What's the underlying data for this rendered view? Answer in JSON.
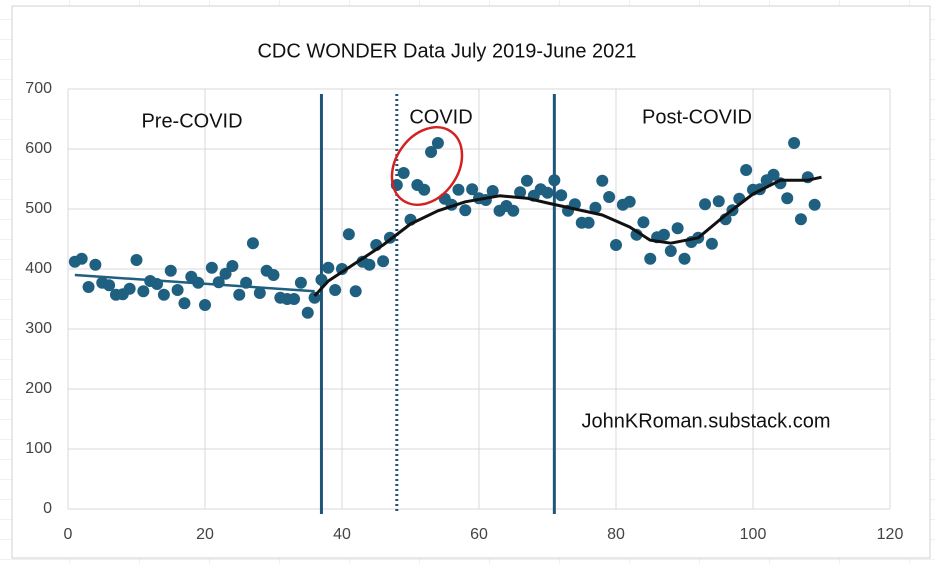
{
  "chart_data": {
    "type": "scatter",
    "title": "CDC WONDER Data July 2019-June 2021",
    "annotations": [
      "Pre-COVID",
      "COVID",
      "Post-COVID",
      "JohnKRoman.substack.com"
    ],
    "color": "#1f5f80",
    "x": [
      1,
      2,
      3,
      4,
      5,
      6,
      7,
      8,
      9,
      10,
      11,
      12,
      13,
      14,
      15,
      16,
      17,
      18,
      19,
      20,
      21,
      22,
      23,
      24,
      25,
      26,
      27,
      28,
      29,
      30,
      31,
      32,
      33,
      34,
      35,
      36,
      37,
      38,
      39,
      40,
      41,
      42,
      43,
      44,
      45,
      46,
      47,
      48,
      49,
      50,
      51,
      52,
      53,
      54,
      55,
      56,
      57,
      58,
      59,
      60,
      61,
      62,
      63,
      64,
      65,
      66,
      67,
      68,
      69,
      70,
      71,
      72,
      73,
      74,
      75,
      76,
      77,
      78,
      79,
      80,
      81,
      82,
      83,
      84,
      85,
      86,
      87,
      88,
      89,
      90,
      91,
      92,
      93,
      94,
      95,
      96,
      97,
      98,
      99,
      100,
      101,
      102,
      103,
      104,
      105,
      106,
      107,
      108,
      109
    ],
    "values": [
      412,
      417,
      370,
      407,
      377,
      373,
      357,
      358,
      367,
      415,
      363,
      380,
      375,
      357,
      397,
      365,
      343,
      387,
      377,
      340,
      402,
      378,
      392,
      405,
      357,
      377,
      443,
      360,
      397,
      390,
      352,
      350,
      350,
      377,
      327,
      352,
      382,
      402,
      365,
      400,
      458,
      363,
      412,
      407,
      440,
      413,
      452,
      540,
      560,
      482,
      540,
      532,
      595,
      610,
      517,
      507,
      532,
      498,
      533,
      518,
      515,
      530,
      497,
      505,
      497,
      528,
      547,
      522,
      533,
      527,
      548,
      523,
      497,
      508,
      477,
      477,
      502,
      547,
      520,
      440,
      507,
      512,
      457,
      478,
      417,
      453,
      457,
      430,
      468,
      417,
      445,
      452,
      508,
      442,
      513,
      483,
      498,
      517,
      565,
      532,
      533,
      548,
      557,
      543,
      518,
      610,
      483,
      553,
      507
    ],
    "trendlines": [
      {
        "color": "#1f5f80",
        "x": [
          1,
          36
        ],
        "values": [
          390,
          363
        ]
      },
      {
        "color": "#111111",
        "x": [
          36,
          38,
          42,
          46,
          50,
          54,
          58,
          63,
          67,
          70,
          74,
          78,
          82,
          85,
          88,
          92,
          96,
          100,
          104,
          108,
          110
        ],
        "values": [
          355,
          380,
          410,
          440,
          475,
          497,
          512,
          522,
          518,
          510,
          500,
          490,
          470,
          448,
          443,
          452,
          490,
          525,
          548,
          548,
          553
        ]
      }
    ],
    "vlines": [
      {
        "x": 37,
        "style": "solid"
      },
      {
        "x": 48,
        "style": "dotted"
      },
      {
        "x": 71,
        "style": "solid"
      }
    ],
    "vline_color": "#1f5578",
    "xlim": [
      0,
      120
    ],
    "xticks": [
      0,
      20,
      40,
      60,
      80,
      100,
      120
    ],
    "ylim": [
      0,
      700
    ],
    "yticks": [
      0,
      100,
      200,
      300,
      400,
      500,
      600,
      700
    ],
    "grid": true
  }
}
